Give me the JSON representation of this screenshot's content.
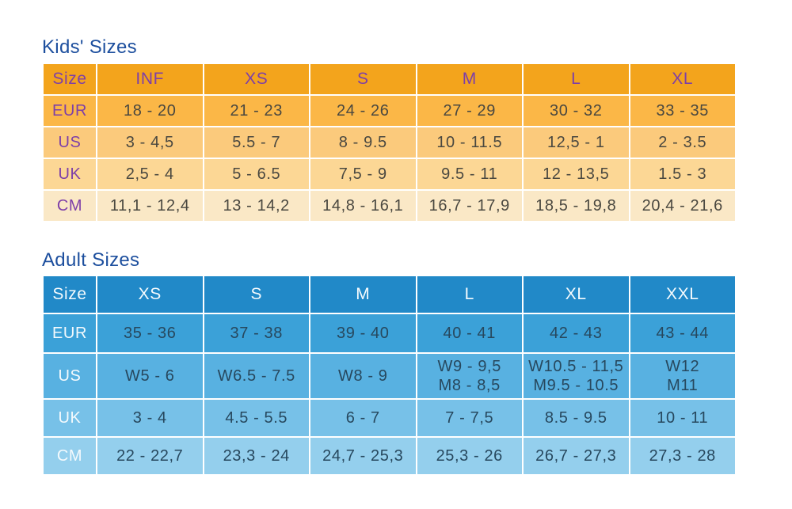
{
  "chart_data": [
    {
      "type": "table",
      "title": "Kids' Sizes",
      "columns": [
        "Size",
        "INF",
        "XS",
        "S",
        "M",
        "L",
        "XL"
      ],
      "rows": [
        {
          "label": "EUR",
          "values": [
            "18 - 20",
            "21 - 23",
            "24 - 26",
            "27 - 29",
            "30 - 32",
            "33 - 35"
          ]
        },
        {
          "label": "US",
          "values": [
            "3 - 4,5",
            "5.5 - 7",
            "8 - 9.5",
            "10 - 11.5",
            "12,5 - 1",
            "2 - 3.5"
          ]
        },
        {
          "label": "UK",
          "values": [
            "2,5 - 4",
            "5 - 6.5",
            "7,5 - 9",
            "9.5 - 11",
            "12 - 13,5",
            "1.5 - 3"
          ]
        },
        {
          "label": "CM",
          "values": [
            "11,1 - 12,4",
            "13 - 14,2",
            "14,8 - 16,1",
            "16,7 - 17,9",
            "18,5 - 19,8",
            "20,4 - 21,6"
          ]
        }
      ]
    },
    {
      "type": "table",
      "title": "Adult Sizes",
      "columns": [
        "Size",
        "XS",
        "S",
        "M",
        "L",
        "XL",
        "XXL"
      ],
      "rows": [
        {
          "label": "EUR",
          "values": [
            "35 - 36",
            "37 - 38",
            "39 - 40",
            "40 - 41",
            "42 - 43",
            "43 - 44"
          ]
        },
        {
          "label": "US",
          "values": [
            "W5 - 6",
            "W6.5 - 7.5",
            "W8 - 9",
            "W9 - 9,5\nM8 - 8,5",
            "W10.5 - 11,5\nM9.5 - 10.5",
            "W12\nM11"
          ]
        },
        {
          "label": "UK",
          "values": [
            "3 - 4",
            "4.5 - 5.5",
            "6 - 7",
            "7 - 7,5",
            "8.5 - 9.5",
            "10 - 11"
          ]
        },
        {
          "label": "CM",
          "values": [
            "22 - 22,7",
            "23,3 - 24",
            "24,7 - 25,3",
            "25,3 - 26",
            "26,7 - 27,3",
            "27,3 - 28"
          ]
        }
      ]
    }
  ],
  "colors": {
    "title_color": "#1d4f9e",
    "kids_header_bg": "#f3a41c",
    "kids_row1_bg": "#fbb747",
    "kids_row2_bg": "#fbca7c",
    "kids_row3_bg": "#fcd795",
    "kids_row4_bg": "#fae8c6",
    "kids_label": "#7d3fa8",
    "kids_value": "#4a4840",
    "adult_header_bg": "#2189c8",
    "adult_row1_bg": "#3ba1d8",
    "adult_row2_bg": "#58b1e1",
    "adult_row3_bg": "#77c1e8",
    "adult_row4_bg": "#94cfed",
    "adult_label": "#f4fafd",
    "adult_value": "#27485e"
  }
}
